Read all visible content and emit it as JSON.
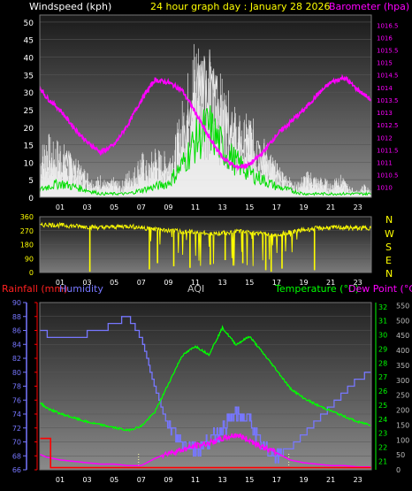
{
  "chart_data": [
    {
      "type": "line",
      "title": "24 hour graph day : January 28 2026",
      "ylabel": "Windspeed (kph)",
      "y2label": "Barometer (hpa)",
      "ylim": [
        0,
        52
      ],
      "y_ticks": [
        "0",
        "5",
        "10",
        "15",
        "20",
        "25",
        "30",
        "35",
        "40",
        "45",
        "50"
      ],
      "y2lim": [
        1009.6,
        1016.9
      ],
      "y2_ticks": [
        "1010",
        "1010.5",
        "1011",
        "1011.5",
        "1012",
        "1012.5",
        "1013",
        "1013.5",
        "1014",
        "1014.5",
        "1015",
        "1015.5",
        "1016",
        "1016.5"
      ],
      "x_ticks": [
        "01",
        "03",
        "05",
        "07",
        "09",
        "11",
        "13",
        "15",
        "17",
        "19",
        "21",
        "23"
      ],
      "x_tick_hours": [
        1,
        3,
        5,
        7,
        9,
        11,
        13,
        15,
        17,
        19,
        21,
        23
      ],
      "xlim": [
        -0.5,
        24
      ],
      "series": [
        {
          "key": "barometer",
          "color": "#ff00ff",
          "axis": "y2",
          "x": [
            -0.5,
            0,
            1,
            2,
            3,
            4,
            5,
            6,
            7,
            8,
            9,
            10,
            11,
            12,
            13,
            14,
            15,
            16,
            17,
            18,
            19,
            20,
            21,
            22,
            23,
            24
          ],
          "values": [
            1014.0,
            1013.6,
            1013.1,
            1012.4,
            1011.8,
            1011.4,
            1011.7,
            1012.5,
            1013.5,
            1014.3,
            1014.2,
            1013.9,
            1013.0,
            1012.0,
            1011.2,
            1010.8,
            1010.9,
            1011.4,
            1012.1,
            1012.6,
            1013.1,
            1013.7,
            1014.2,
            1014.4,
            1013.9,
            1013.5
          ]
        },
        {
          "key": "windspeed",
          "color": "#ffffff",
          "axis": "y",
          "x": [
            -0.5,
            0,
            0.5,
            1,
            1.5,
            2,
            2.5,
            3,
            3.5,
            4,
            4.5,
            5,
            5.5,
            6,
            6.5,
            7,
            7.5,
            8,
            8.5,
            9,
            9.5,
            10,
            10.5,
            11,
            11.5,
            12,
            12.5,
            13,
            13.5,
            14,
            14.5,
            15,
            15.5,
            16,
            16.5,
            17,
            17.5,
            18,
            18.5,
            19,
            19.5,
            20,
            20.5,
            21,
            21.5,
            22,
            22.5,
            23,
            23.5,
            24
          ],
          "values": [
            4,
            7,
            9,
            5,
            12,
            9,
            7,
            4,
            3,
            2,
            4,
            2,
            1,
            2,
            3,
            7,
            5,
            9,
            6,
            8,
            5,
            15,
            22,
            30,
            38,
            36,
            30,
            26,
            22,
            20,
            16,
            18,
            14,
            12,
            9,
            7,
            5,
            4,
            2,
            3,
            5,
            3,
            2,
            2,
            3,
            4,
            2,
            1,
            2,
            1
          ]
        },
        {
          "key": "gust",
          "color": "#ffffff",
          "axis": "y",
          "x": [
            -0.5,
            0,
            0.5,
            1,
            1.5,
            2,
            2.5,
            3,
            3.5,
            4,
            4.5,
            5,
            5.5,
            6,
            6.5,
            7,
            7.5,
            8,
            8.5,
            9,
            9.5,
            10,
            10.5,
            11,
            11.5,
            12,
            12.5,
            13,
            13.5,
            14,
            14.5,
            15,
            15.5,
            16,
            16.5,
            17,
            17.5,
            18,
            18.5,
            19,
            19.5,
            20,
            20.5,
            21,
            21.5,
            22,
            22.5,
            23,
            23.5,
            24
          ],
          "values": [
            14,
            20,
            16,
            18,
            14,
            12,
            10,
            8,
            5,
            7,
            4,
            6,
            4,
            8,
            9,
            14,
            10,
            16,
            13,
            14,
            18,
            28,
            38,
            50,
            44,
            40,
            38,
            35,
            30,
            26,
            22,
            26,
            20,
            18,
            14,
            10,
            8,
            6,
            4,
            7,
            8,
            6,
            6,
            4,
            8,
            5,
            3,
            2,
            4,
            2
          ]
        },
        {
          "key": "windspeed_avg",
          "color": "#00dd00",
          "axis": "y",
          "x": [
            -0.5,
            0,
            1,
            2,
            3,
            4,
            5,
            6,
            7,
            8,
            9,
            10,
            11,
            12,
            13,
            14,
            15,
            16,
            17,
            18,
            19,
            20,
            21,
            22,
            23,
            24
          ],
          "values": [
            2,
            3,
            4,
            3,
            2,
            1,
            1,
            1,
            2,
            3,
            4,
            9,
            16,
            20,
            14,
            10,
            7,
            5,
            3,
            2,
            1,
            1,
            1,
            1,
            1,
            1
          ]
        }
      ]
    },
    {
      "type": "line",
      "title": "",
      "y_ticks": [
        "0",
        "90",
        "180",
        "270",
        "360"
      ],
      "ylim": [
        0,
        360
      ],
      "direction_labels": [
        "N",
        "W",
        "S",
        "E",
        "N"
      ],
      "x_ticks": [
        "01",
        "03",
        "05",
        "07",
        "09",
        "11",
        "13",
        "15",
        "17",
        "19",
        "21",
        "23"
      ],
      "x_tick_hours": [
        1,
        3,
        5,
        7,
        9,
        11,
        13,
        15,
        17,
        19,
        21,
        23
      ],
      "xlim": [
        -0.5,
        24
      ],
      "series": [
        {
          "key": "wind_direction",
          "color": "#ffff00",
          "x": [
            -0.5,
            0,
            1,
            2,
            3,
            4,
            5,
            6,
            7,
            8,
            9,
            10,
            11,
            12,
            13,
            14,
            15,
            16,
            17,
            18,
            19,
            20,
            21,
            22,
            23,
            24
          ],
          "values": [
            300,
            310,
            305,
            300,
            295,
            290,
            295,
            300,
            290,
            280,
            270,
            265,
            260,
            250,
            255,
            265,
            260,
            250,
            240,
            260,
            275,
            285,
            290,
            290,
            285,
            290
          ],
          "dips": [
            {
              "x": 3.2,
              "v": 5
            },
            {
              "x": 7.6,
              "v": 20
            },
            {
              "x": 8.2,
              "v": 60
            },
            {
              "x": 9.4,
              "v": 40
            },
            {
              "x": 10.6,
              "v": 30
            },
            {
              "x": 12.1,
              "v": 50
            },
            {
              "x": 13.2,
              "v": 80
            },
            {
              "x": 14.5,
              "v": 60
            },
            {
              "x": 16.2,
              "v": 15
            },
            {
              "x": 16.6,
              "v": 5
            },
            {
              "x": 17.4,
              "v": 25
            },
            {
              "x": 19.8,
              "v": 15
            }
          ]
        }
      ]
    },
    {
      "type": "line",
      "title": "",
      "legend": [
        "Rainfall (mm)",
        "Humidity",
        "AQI",
        "Temperature (°C)",
        "Dew Point (°C)"
      ],
      "legend_colors": [
        "#ff0000",
        "#7777ff",
        "#bbbbbb",
        "#00ff00",
        "#ff00ff"
      ],
      "humidity_ticks": [
        "66",
        "68",
        "70",
        "72",
        "74",
        "76",
        "78",
        "80",
        "82",
        "84",
        "86",
        "88",
        "90"
      ],
      "humidity_lim": [
        66,
        90
      ],
      "temp_ticks": [
        "21",
        "22",
        "23",
        "24",
        "25",
        "26",
        "27",
        "28",
        "29",
        "30",
        "31",
        "32"
      ],
      "temp_lim": [
        20.4,
        32.3
      ],
      "aqi_ticks": [
        "0",
        "50",
        "100",
        "150",
        "200",
        "250",
        "300",
        "350",
        "400",
        "450",
        "500",
        "550"
      ],
      "aqi_lim": [
        0,
        560
      ],
      "x_ticks": [
        "01",
        "03",
        "05",
        "07",
        "09",
        "11",
        "13",
        "15",
        "17",
        "19",
        "21",
        "23"
      ],
      "x_tick_hours": [
        1,
        3,
        5,
        7,
        9,
        11,
        13,
        15,
        17,
        19,
        21,
        23
      ],
      "xlim": [
        -0.5,
        24
      ],
      "series": [
        {
          "key": "humidity",
          "color": "#7777ff",
          "axis": "humidity",
          "x": [
            -0.5,
            0,
            1,
            2,
            3,
            4,
            5,
            6,
            7,
            8,
            9,
            10,
            11,
            12,
            13,
            14,
            15,
            16,
            17,
            18,
            19,
            20,
            21,
            22,
            23,
            24
          ],
          "values": [
            86,
            85.5,
            85,
            85,
            85.5,
            86,
            87,
            88,
            85,
            78,
            72,
            70,
            69,
            70,
            72,
            74,
            73,
            69,
            68,
            69,
            71,
            73,
            75,
            77,
            79,
            80
          ]
        },
        {
          "key": "temperature",
          "color": "#00ff00",
          "axis": "temp",
          "x": [
            -0.5,
            0,
            1,
            2,
            3,
            4,
            5,
            6,
            7,
            8,
            9,
            10,
            11,
            12,
            13,
            14,
            15,
            16,
            17,
            18,
            19,
            20,
            21,
            22,
            23,
            24
          ],
          "values": [
            25.2,
            24.8,
            24.4,
            24.1,
            23.8,
            23.6,
            23.4,
            23.2,
            23.5,
            24.5,
            26.5,
            28.5,
            29.2,
            28.6,
            30.5,
            29.3,
            29.9,
            28.7,
            27.5,
            26.2,
            25.5,
            25.0,
            24.6,
            24.2,
            23.8,
            23.6
          ]
        },
        {
          "key": "dew_point",
          "color": "#ff00ff",
          "axis": "temp",
          "x": [
            -0.5,
            0,
            1,
            2,
            3,
            4,
            5,
            6,
            7,
            8,
            9,
            10,
            11,
            12,
            13,
            14,
            15,
            16,
            17,
            18,
            19,
            20,
            21,
            22,
            23,
            24
          ],
          "values": [
            21.5,
            21.3,
            21.1,
            21.0,
            20.9,
            20.8,
            20.8,
            20.7,
            20.7,
            21.2,
            21.6,
            21.8,
            22.1,
            22.3,
            22.6,
            22.9,
            22.5,
            22.0,
            21.6,
            21.1,
            20.9,
            20.8,
            20.7,
            20.7,
            20.6,
            20.6
          ]
        },
        {
          "key": "rainfall",
          "color": "#ff0000",
          "axis": "humidity",
          "x": [
            -0.5,
            0.3,
            0.3,
            24
          ],
          "values": [
            70.5,
            70.5,
            66.3,
            66.3
          ]
        }
      ]
    }
  ]
}
